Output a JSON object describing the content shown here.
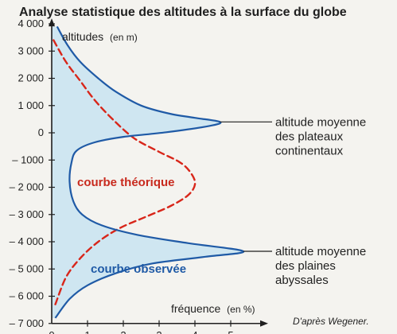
{
  "chart_data": {
    "type": "line",
    "title": "Analyse statistique des altitudes à la surface du globe",
    "ylabel": "altitudes",
    "ylabel_unit": "(en m)",
    "xlabel": "fréquence",
    "xlabel_unit": "(en %)",
    "xlim": [
      0,
      5.6
    ],
    "ylim": [
      -7000,
      4200
    ],
    "x_ticks": [
      "0",
      "1",
      "2",
      "3",
      "4",
      "5"
    ],
    "y_ticks": [
      "4 000",
      "3 000",
      "2 000",
      "1 000",
      "0",
      "– 1000",
      "– 2 000",
      "– 3 000",
      "– 4 000",
      "– 5 000",
      "– 6 000",
      "– 7 000"
    ],
    "y_tick_values": [
      4000,
      3000,
      2000,
      1000,
      0,
      -1000,
      -2000,
      -3000,
      -4000,
      -5000,
      -6000,
      -7000
    ],
    "series": [
      {
        "name": "courbe observée",
        "color": "#1f5aa6",
        "style": "solid",
        "fill": "#cfe6f1",
        "points": [
          [
            0.15,
            3900
          ],
          [
            0.45,
            3200
          ],
          [
            0.8,
            2600
          ],
          [
            1.3,
            2000
          ],
          [
            1.8,
            1500
          ],
          [
            2.5,
            1000
          ],
          [
            3.3,
            700
          ],
          [
            4.0,
            550
          ],
          [
            4.7,
            400
          ],
          [
            4.4,
            250
          ],
          [
            3.2,
            20
          ],
          [
            2.0,
            -150
          ],
          [
            1.2,
            -350
          ],
          [
            0.7,
            -650
          ],
          [
            0.55,
            -1100
          ],
          [
            0.5,
            -1800
          ],
          [
            0.6,
            -2500
          ],
          [
            0.85,
            -3000
          ],
          [
            1.4,
            -3400
          ],
          [
            2.4,
            -3750
          ],
          [
            3.8,
            -4050
          ],
          [
            5.35,
            -4350
          ],
          [
            4.3,
            -4550
          ],
          [
            2.8,
            -4800
          ],
          [
            1.8,
            -5150
          ],
          [
            1.0,
            -5600
          ],
          [
            0.5,
            -6100
          ],
          [
            0.1,
            -6800
          ]
        ]
      },
      {
        "name": "courbe théorique",
        "color": "#d8261a",
        "style": "dashed",
        "points": [
          [
            0.05,
            3400
          ],
          [
            0.4,
            2600
          ],
          [
            0.8,
            1900
          ],
          [
            1.2,
            1200
          ],
          [
            1.7,
            500
          ],
          [
            2.3,
            -200
          ],
          [
            3.0,
            -700
          ],
          [
            3.6,
            -1100
          ],
          [
            3.9,
            -1500
          ],
          [
            4.0,
            -1900
          ],
          [
            3.8,
            -2300
          ],
          [
            3.3,
            -2700
          ],
          [
            2.6,
            -3100
          ],
          [
            1.9,
            -3500
          ],
          [
            1.3,
            -4000
          ],
          [
            0.8,
            -4600
          ],
          [
            0.4,
            -5300
          ],
          [
            0.1,
            -6300
          ]
        ]
      }
    ],
    "annotations": [
      {
        "lines": [
          "altitude moyenne",
          "des plateaux",
          "continentaux"
        ],
        "point": [
          4.7,
          400
        ]
      },
      {
        "lines": [
          "altitude moyenne",
          "des plaines",
          "abyssales"
        ],
        "point": [
          5.35,
          -4350
        ]
      }
    ],
    "source": "D'après Wegener."
  }
}
